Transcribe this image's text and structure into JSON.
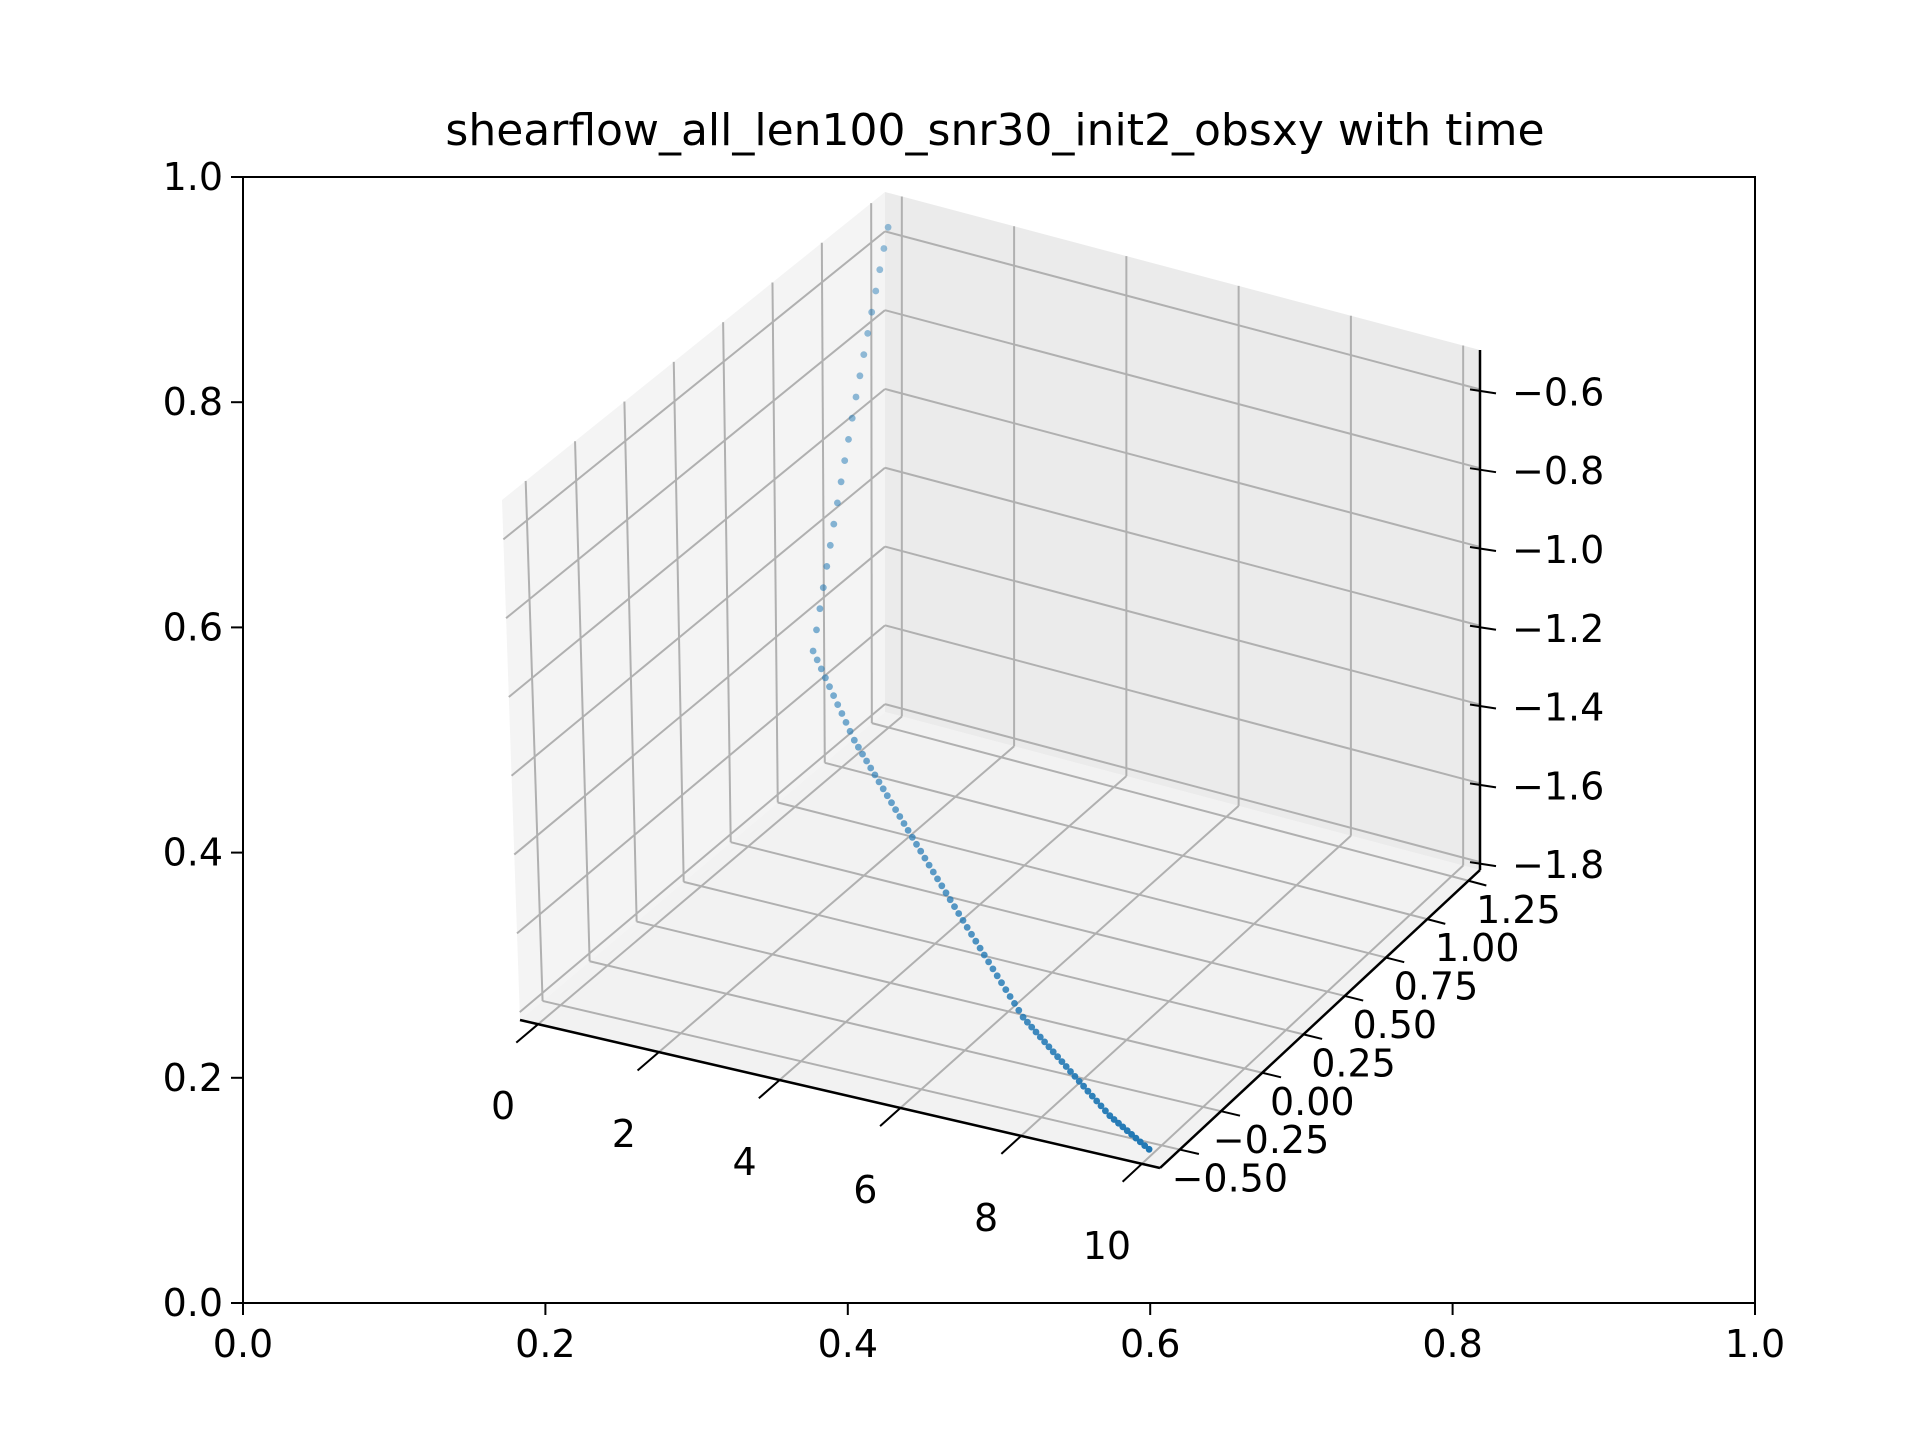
{
  "chart_data": {
    "type": "scatter",
    "title": "shearflow_all_len100_snr30_init2_obsxy with time",
    "outer_axes": {
      "xlim": [
        0.0,
        1.0
      ],
      "ylim": [
        0.0,
        1.0
      ],
      "x_ticks": [
        "0.0",
        "0.2",
        "0.4",
        "0.6",
        "0.8",
        "1.0"
      ],
      "y_ticks": [
        "0.0",
        "0.2",
        "0.4",
        "0.6",
        "0.8",
        "1.0"
      ]
    },
    "axis3d": {
      "x_ticks": [
        "0",
        "2",
        "4",
        "6",
        "8",
        "10"
      ],
      "y_ticks": [
        "−0.50",
        "−0.25",
        "0.00",
        "0.25",
        "0.50",
        "0.75",
        "1.00",
        "1.25"
      ],
      "z_ticks": [
        "−1.8",
        "−1.6",
        "−1.4",
        "−1.2",
        "−1.0",
        "−0.8",
        "−0.6"
      ],
      "xlim": [
        -0.3,
        10.3
      ],
      "ylim": [
        -0.62,
        1.32
      ],
      "zlim": [
        -1.82,
        -0.5
      ],
      "grid": true
    },
    "series": [
      {
        "color": "#1f77b4",
        "points_note_units": "x=time, y, z in data units",
        "x": [
          0.0,
          0.1,
          0.2,
          0.3,
          0.4,
          0.5,
          0.6,
          0.7,
          0.8,
          0.9,
          1.0,
          1.1,
          1.2,
          1.3,
          1.4,
          1.5,
          1.6,
          1.7,
          1.8,
          1.9,
          2.0,
          2.1,
          2.2,
          2.3,
          2.4,
          2.5,
          2.6,
          2.7,
          2.8,
          2.9,
          3.0,
          3.1,
          3.2,
          3.3,
          3.4,
          3.5,
          3.6,
          3.7,
          3.8,
          3.9,
          4.0,
          4.1,
          4.2,
          4.3,
          4.4,
          4.5,
          4.6,
          4.7,
          4.8,
          4.9,
          5.0,
          5.1,
          5.2,
          5.3,
          5.4,
          5.5,
          5.6,
          5.7,
          5.8,
          5.9,
          6.0,
          6.1,
          6.2,
          6.3,
          6.4,
          6.5,
          6.6,
          6.7,
          6.8,
          6.9,
          7.0,
          7.1,
          7.2,
          7.3,
          7.4,
          7.5,
          7.6,
          7.7,
          7.8,
          7.9,
          8.0,
          8.1,
          8.2,
          8.3,
          8.4,
          8.5,
          8.6,
          8.7,
          8.8,
          8.9,
          9.0,
          9.1,
          9.2,
          9.3,
          9.4,
          9.5,
          9.6,
          9.7,
          9.8,
          9.9
        ],
        "y": [
          1.25,
          1.2,
          1.15,
          1.1,
          1.05,
          1.0,
          0.95,
          0.9,
          0.85,
          0.8,
          0.75,
          0.7,
          0.65,
          0.6,
          0.55,
          0.5,
          0.45,
          0.4,
          0.35,
          0.3,
          0.25,
          0.24,
          0.23,
          0.22,
          0.21,
          0.2,
          0.19,
          0.18,
          0.17,
          0.16,
          0.15,
          0.14,
          0.13,
          0.12,
          0.11,
          0.1,
          0.09,
          0.08,
          0.07,
          0.06,
          0.05,
          0.04,
          0.03,
          0.02,
          0.01,
          0.0,
          -0.01,
          -0.02,
          -0.03,
          -0.04,
          -0.05,
          -0.06,
          -0.07,
          -0.08,
          -0.09,
          -0.1,
          -0.11,
          -0.12,
          -0.13,
          -0.14,
          -0.15,
          -0.16,
          -0.17,
          -0.18,
          -0.19,
          -0.2,
          -0.21,
          -0.22,
          -0.23,
          -0.24,
          -0.25,
          -0.26,
          -0.27,
          -0.28,
          -0.29,
          -0.3,
          -0.31,
          -0.32,
          -0.33,
          -0.34,
          -0.35,
          -0.36,
          -0.37,
          -0.38,
          -0.39,
          -0.4,
          -0.41,
          -0.42,
          -0.43,
          -0.44,
          -0.45,
          -0.46,
          -0.47,
          -0.48,
          -0.49,
          -0.5,
          -0.51,
          -0.52,
          -0.53,
          -0.54
        ],
        "z": [
          -0.55,
          -0.58,
          -0.61,
          -0.64,
          -0.67,
          -0.7,
          -0.73,
          -0.76,
          -0.79,
          -0.82,
          -0.85,
          -0.88,
          -0.91,
          -0.94,
          -0.97,
          -1.0,
          -1.03,
          -1.06,
          -1.09,
          -1.12,
          -1.15,
          -1.165,
          -1.18,
          -1.195,
          -1.21,
          -1.225,
          -1.24,
          -1.255,
          -1.27,
          -1.285,
          -1.3,
          -1.31,
          -1.32,
          -1.33,
          -1.34,
          -1.35,
          -1.36,
          -1.37,
          -1.38,
          -1.39,
          -1.4,
          -1.41,
          -1.42,
          -1.43,
          -1.44,
          -1.45,
          -1.46,
          -1.47,
          -1.48,
          -1.49,
          -1.5,
          -1.51,
          -1.52,
          -1.53,
          -1.54,
          -1.55,
          -1.56,
          -1.57,
          -1.58,
          -1.59,
          -1.6,
          -1.61,
          -1.62,
          -1.63,
          -1.64,
          -1.65,
          -1.66,
          -1.67,
          -1.68,
          -1.69,
          -1.7,
          -1.705,
          -1.71,
          -1.715,
          -1.72,
          -1.725,
          -1.73,
          -1.735,
          -1.74,
          -1.745,
          -1.75,
          -1.755,
          -1.76,
          -1.765,
          -1.77,
          -1.775,
          -1.78,
          -1.785,
          -1.79,
          -1.795,
          -1.8,
          -1.802,
          -1.804,
          -1.806,
          -1.808,
          -1.81,
          -1.812,
          -1.814,
          -1.816,
          -1.818
        ]
      }
    ]
  }
}
